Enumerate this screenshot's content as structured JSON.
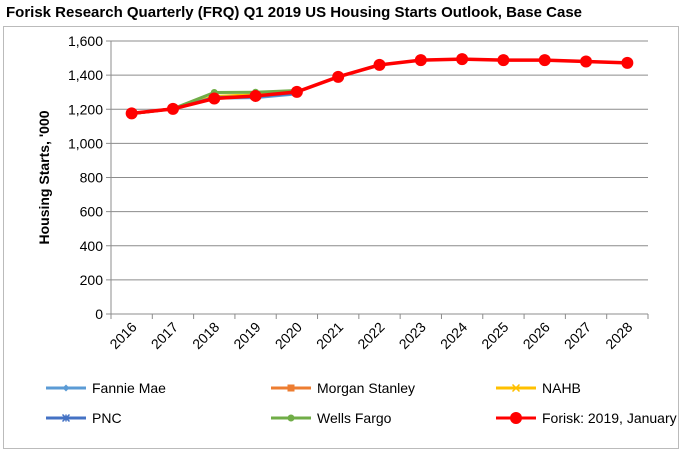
{
  "chart_data": {
    "type": "line",
    "title": "Forisk Research Quarterly (FRQ) Q1 2019 US Housing Starts Outlook, Base Case",
    "xlabel": "",
    "ylabel": "Housing Starts, '000",
    "ylim": [
      0,
      1600
    ],
    "yticks": [
      0,
      200,
      400,
      600,
      800,
      1000,
      1200,
      1400,
      1600
    ],
    "ytick_labels": [
      "0",
      "200",
      "400",
      "600",
      "800",
      "1,000",
      "1,200",
      "1,400",
      "1,600"
    ],
    "grid": true,
    "legend_position": "bottom",
    "categories": [
      "2016",
      "2017",
      "2018",
      "2019",
      "2020",
      "2021",
      "2022",
      "2023",
      "2024",
      "2025",
      "2026",
      "2027",
      "2028"
    ],
    "series": [
      {
        "name": "Fannie Mae",
        "color": "#5B9BD5",
        "marker": "diamond",
        "values": [
          1174,
          1203,
          1265,
          1268,
          1290,
          null,
          null,
          null,
          null,
          null,
          null,
          null,
          null
        ]
      },
      {
        "name": "Morgan Stanley",
        "color": "#ED7D31",
        "marker": "square",
        "values": [
          1174,
          1203,
          1270,
          1280,
          1300,
          null,
          null,
          null,
          null,
          null,
          null,
          null,
          null
        ]
      },
      {
        "name": "NAHB",
        "color": "#FFC000",
        "marker": "x",
        "values": [
          1174,
          1203,
          1275,
          1285,
          1305,
          null,
          null,
          null,
          null,
          null,
          null,
          null,
          null
        ]
      },
      {
        "name": "PNC",
        "color": "#4472C4",
        "marker": "star",
        "values": [
          1174,
          1203,
          1268,
          1275,
          1295,
          null,
          null,
          null,
          null,
          null,
          null,
          null,
          null
        ]
      },
      {
        "name": "Wells Fargo",
        "color": "#70AD47",
        "marker": "circle",
        "values": [
          1174,
          1203,
          1298,
          1300,
          1310,
          null,
          null,
          null,
          null,
          null,
          null,
          null,
          null
        ]
      },
      {
        "name": "Forisk: 2019, January",
        "color": "#FF0000",
        "marker": "circle",
        "values": [
          1176,
          1202,
          1263,
          1278,
          1302,
          1390,
          1460,
          1488,
          1494,
          1488,
          1488,
          1480,
          1472
        ]
      }
    ]
  }
}
